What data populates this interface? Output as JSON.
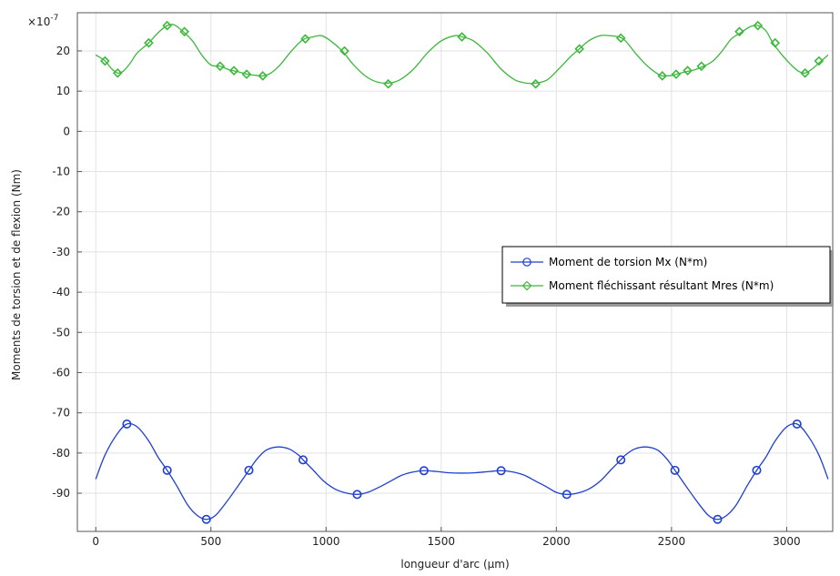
{
  "chart_data": {
    "type": "line",
    "xlabel": "longueur d'arc (µm)",
    "ylabel": "Moments de torsion et de flexion (Nm)",
    "y_multiplier": "×10",
    "y_multiplier_exp": "-7",
    "xlim": [
      -80,
      3200
    ],
    "ylim": [
      -99.5,
      29.5
    ],
    "x_ticks": [
      0,
      500,
      1000,
      1500,
      2000,
      2500,
      3000
    ],
    "y_ticks": [
      20,
      10,
      0,
      -10,
      -20,
      -30,
      -40,
      -50,
      -60,
      -70,
      -80,
      -90
    ],
    "grid": true,
    "legend_position": "right-center",
    "series": [
      {
        "name": "Moment de torsion Mx (N*m)",
        "color": "#1f3fd1",
        "marker": "circle",
        "curve": [
          [
            0,
            -86.5
          ],
          [
            40,
            -80.5
          ],
          [
            90,
            -75.5
          ],
          [
            135,
            -72.8
          ],
          [
            180,
            -73.5
          ],
          [
            230,
            -77
          ],
          [
            270,
            -81
          ],
          [
            310,
            -84.3
          ],
          [
            350,
            -88
          ],
          [
            400,
            -93
          ],
          [
            440,
            -95.5
          ],
          [
            480,
            -96.5
          ],
          [
            520,
            -95.5
          ],
          [
            570,
            -92
          ],
          [
            620,
            -88
          ],
          [
            665,
            -84.3
          ],
          [
            700,
            -81.5
          ],
          [
            740,
            -79.3
          ],
          [
            790,
            -78.5
          ],
          [
            840,
            -79
          ],
          [
            880,
            -80.5
          ],
          [
            900,
            -81.7
          ],
          [
            940,
            -84
          ],
          [
            990,
            -87
          ],
          [
            1040,
            -89
          ],
          [
            1090,
            -90
          ],
          [
            1135,
            -90.3
          ],
          [
            1180,
            -89.8
          ],
          [
            1230,
            -88.5
          ],
          [
            1280,
            -87
          ],
          [
            1330,
            -85.5
          ],
          [
            1380,
            -84.7
          ],
          [
            1425,
            -84.4
          ],
          [
            1480,
            -84.6
          ],
          [
            1530,
            -84.9
          ],
          [
            1590,
            -85
          ],
          [
            1650,
            -84.9
          ],
          [
            1710,
            -84.6
          ],
          [
            1760,
            -84.4
          ],
          [
            1810,
            -84.7
          ],
          [
            1860,
            -85.5
          ],
          [
            1910,
            -87
          ],
          [
            1960,
            -88.5
          ],
          [
            2000,
            -89.8
          ],
          [
            2045,
            -90.3
          ],
          [
            2090,
            -90
          ],
          [
            2140,
            -89
          ],
          [
            2190,
            -87
          ],
          [
            2240,
            -84
          ],
          [
            2280,
            -81.7
          ],
          [
            2300,
            -80.5
          ],
          [
            2340,
            -79
          ],
          [
            2390,
            -78.5
          ],
          [
            2440,
            -79.3
          ],
          [
            2480,
            -81.5
          ],
          [
            2515,
            -84.3
          ],
          [
            2560,
            -88
          ],
          [
            2610,
            -92
          ],
          [
            2660,
            -95.5
          ],
          [
            2700,
            -96.5
          ],
          [
            2740,
            -95.5
          ],
          [
            2780,
            -93
          ],
          [
            2830,
            -88
          ],
          [
            2870,
            -84.3
          ],
          [
            2910,
            -81
          ],
          [
            2950,
            -77
          ],
          [
            3000,
            -73.5
          ],
          [
            3045,
            -72.8
          ],
          [
            3090,
            -75.5
          ],
          [
            3140,
            -80.5
          ],
          [
            3180,
            -86.5
          ]
        ],
        "markers": [
          [
            135,
            -72.8
          ],
          [
            310,
            -84.3
          ],
          [
            480,
            -96.5
          ],
          [
            665,
            -84.3
          ],
          [
            900,
            -81.7
          ],
          [
            1135,
            -90.3
          ],
          [
            1425,
            -84.4
          ],
          [
            1760,
            -84.4
          ],
          [
            2045,
            -90.3
          ],
          [
            2280,
            -81.7
          ],
          [
            2515,
            -84.3
          ],
          [
            2700,
            -96.5
          ],
          [
            2870,
            -84.3
          ],
          [
            3045,
            -72.8
          ]
        ]
      },
      {
        "name": "Moment fléchissant résultant Mres (N*m)",
        "color": "#3cb83c",
        "marker": "diamond",
        "curve": [
          [
            0,
            19
          ],
          [
            40,
            17.5
          ],
          [
            70,
            15.5
          ],
          [
            95,
            14.5
          ],
          [
            120,
            15
          ],
          [
            150,
            17
          ],
          [
            180,
            19.5
          ],
          [
            230,
            22
          ],
          [
            270,
            24.5
          ],
          [
            310,
            26.3
          ],
          [
            340,
            26.5
          ],
          [
            375,
            25
          ],
          [
            420,
            22.5
          ],
          [
            460,
            19
          ],
          [
            500,
            16.5
          ],
          [
            540,
            16.2
          ],
          [
            580,
            15.3
          ],
          [
            620,
            14.8
          ],
          [
            660,
            14.2
          ],
          [
            700,
            13.9
          ],
          [
            725,
            13.8
          ],
          [
            760,
            14.5
          ],
          [
            800,
            16.5
          ],
          [
            850,
            20
          ],
          [
            900,
            22.8
          ],
          [
            945,
            23.5
          ],
          [
            980,
            23.8
          ],
          [
            1020,
            22.5
          ],
          [
            1070,
            20
          ],
          [
            1120,
            16.5
          ],
          [
            1170,
            13.8
          ],
          [
            1220,
            12.3
          ],
          [
            1270,
            12
          ],
          [
            1320,
            12.8
          ],
          [
            1380,
            15.5
          ],
          [
            1440,
            19.5
          ],
          [
            1500,
            22.5
          ],
          [
            1560,
            23.8
          ],
          [
            1590,
            23.5
          ],
          [
            1640,
            22.5
          ],
          [
            1700,
            19.5
          ],
          [
            1760,
            15.5
          ],
          [
            1820,
            12.8
          ],
          [
            1870,
            12
          ],
          [
            1910,
            12
          ],
          [
            1960,
            12.8
          ],
          [
            2010,
            15.5
          ],
          [
            2060,
            18.5
          ],
          [
            2100,
            20.5
          ],
          [
            2140,
            22.5
          ],
          [
            2190,
            23.8
          ],
          [
            2230,
            23.8
          ],
          [
            2270,
            23.5
          ],
          [
            2300,
            22.5
          ],
          [
            2350,
            19
          ],
          [
            2400,
            16
          ],
          [
            2440,
            14.3
          ],
          [
            2460,
            13.8
          ],
          [
            2500,
            13.9
          ],
          [
            2520,
            14.2
          ],
          [
            2560,
            14.8
          ],
          [
            2600,
            15.3
          ],
          [
            2640,
            16.2
          ],
          [
            2680,
            17.5
          ],
          [
            2720,
            20
          ],
          [
            2760,
            23
          ],
          [
            2800,
            24.5
          ],
          [
            2840,
            26
          ],
          [
            2875,
            26.3
          ],
          [
            2910,
            25
          ],
          [
            2940,
            22
          ],
          [
            2980,
            19
          ],
          [
            3020,
            16.5
          ],
          [
            3050,
            15
          ],
          [
            3080,
            14.5
          ],
          [
            3110,
            15.5
          ],
          [
            3150,
            17.5
          ],
          [
            3180,
            19
          ]
        ],
        "markers": [
          [
            40,
            17.5
          ],
          [
            95,
            14.5
          ],
          [
            230,
            22
          ],
          [
            310,
            26.3
          ],
          [
            385,
            24.8
          ],
          [
            540,
            16.2
          ],
          [
            600,
            15.1
          ],
          [
            655,
            14.2
          ],
          [
            725,
            13.8
          ],
          [
            910,
            23
          ],
          [
            1080,
            20
          ],
          [
            1270,
            11.8
          ],
          [
            1590,
            23.5
          ],
          [
            1910,
            11.8
          ],
          [
            2100,
            20.5
          ],
          [
            2280,
            23.2
          ],
          [
            2460,
            13.8
          ],
          [
            2520,
            14.2
          ],
          [
            2570,
            15.1
          ],
          [
            2630,
            16.2
          ],
          [
            2795,
            24.8
          ],
          [
            2875,
            26.3
          ],
          [
            2950,
            22
          ],
          [
            3080,
            14.5
          ],
          [
            3140,
            17.5
          ]
        ]
      }
    ]
  }
}
